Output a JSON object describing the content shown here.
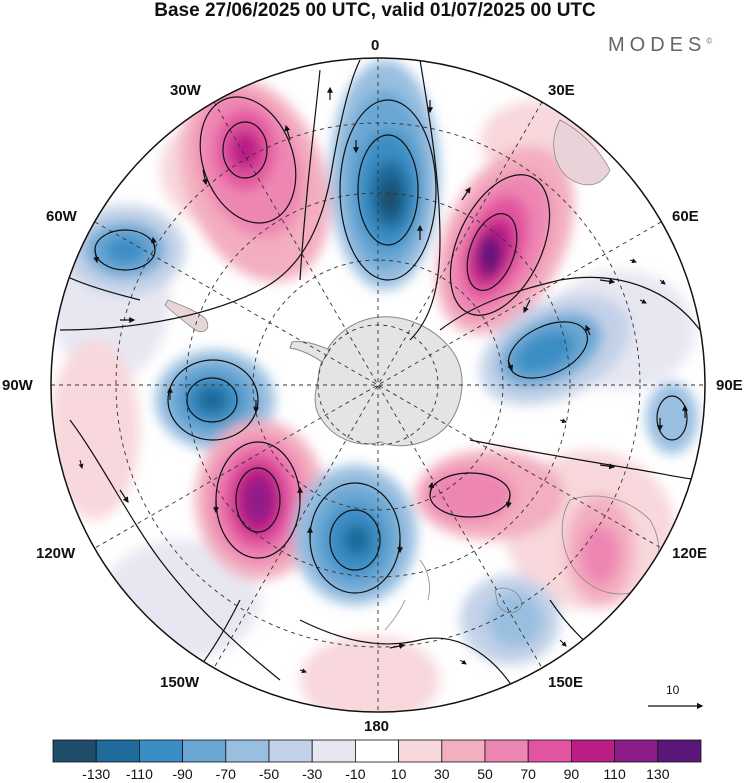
{
  "title": "Base 27/06/2025 00 UTC, valid 01/07/2025 00 UTC",
  "brand": "MODES",
  "brand_mark": "©",
  "longitude_labels": {
    "lon_0": "0",
    "lon_30e": "30E",
    "lon_60e": "60E",
    "lon_90e": "90E",
    "lon_120e": "120E",
    "lon_150e": "150E",
    "lon_180": "180",
    "lon_150w": "150W",
    "lon_120w": "120W",
    "lon_90w": "90W",
    "lon_60w": "60W",
    "lon_30w": "30W"
  },
  "reference_vector": "10",
  "colorbar": {
    "colors": [
      "#1f4d6b",
      "#1e6b9c",
      "#3a8ec5",
      "#6ba7d4",
      "#99bfe0",
      "#c3d1e8",
      "#e7e7f2",
      "#ffffff",
      "#f8d8dc",
      "#f3aebf",
      "#ee86b3",
      "#e2549f",
      "#bb1f86",
      "#8c1c87",
      "#5b1679"
    ],
    "labels": [
      "-130",
      "-110",
      "-90",
      "-70",
      "-50",
      "-30",
      "-10",
      "10",
      "30",
      "50",
      "70",
      "90",
      "110",
      "130"
    ]
  }
}
